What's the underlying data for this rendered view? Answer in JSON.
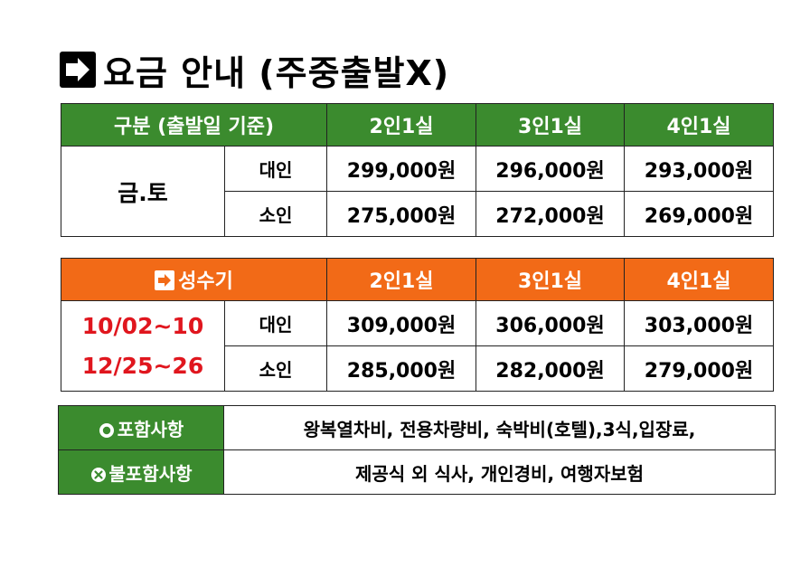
{
  "title": {
    "icon": "right-arrow-box-icon",
    "text": "요금 안내 (주중출발X)"
  },
  "regular_table": {
    "header": [
      "구분 (출발일 기준)",
      "2인1실",
      "3인1실",
      "4인1실"
    ],
    "day_label": "금.토",
    "rows": [
      {
        "kind": "대인",
        "prices": [
          "299,000원",
          "296,000원",
          "293,000원"
        ]
      },
      {
        "kind": "소인",
        "prices": [
          "275,000원",
          "272,000원",
          "269,000원"
        ]
      }
    ],
    "header_color": "#3b8b2e"
  },
  "peak_table": {
    "header_icon": "right-arrow-box-icon",
    "header": [
      "성수기",
      "2인1실",
      "3인1실",
      "4인1실"
    ],
    "dates": [
      "10/02~10",
      "12/25~26"
    ],
    "dates_color": "#e0161e",
    "rows": [
      {
        "kind": "대인",
        "prices": [
          "309,000원",
          "306,000원",
          "303,000원"
        ]
      },
      {
        "kind": "소인",
        "prices": [
          "285,000원",
          "282,000원",
          "279,000원"
        ]
      }
    ],
    "header_color": "#f26a17"
  },
  "inclusions": {
    "included": {
      "icon": "circle-bullet-icon",
      "label": "포함사항",
      "text": "왕복열차비, 전용차량비, 숙박비(호텔),3식,입장료,"
    },
    "excluded": {
      "icon": "circle-x-icon",
      "label": "불포함사항",
      "text": "제공식 외 식사, 개인경비, 여행자보험"
    }
  }
}
